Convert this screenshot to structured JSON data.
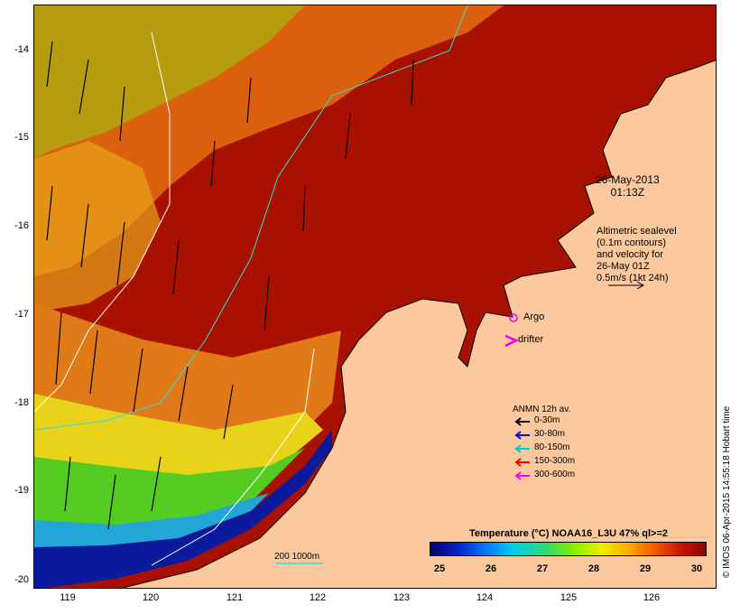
{
  "map": {
    "date_line1": "26-May-2013",
    "date_line2": "01:13Z",
    "altimetry_lines": [
      "Altimetric sealevel",
      "(0.1m contours)",
      "and velocity for",
      "26-May 01Z",
      "0.5m/s (1kt 24h)"
    ],
    "argo_label": "Argo",
    "drifter_label": "drifter",
    "scale_label": "200 1000m",
    "credit": "© IMOS 06-Apr-2015 14:55:18 Hobart time"
  },
  "axes": {
    "y_ticks": [
      "-14",
      "-15",
      "-16",
      "-17",
      "-18",
      "-19",
      "-20"
    ],
    "x_ticks": [
      "119",
      "120",
      "121",
      "122",
      "123",
      "124",
      "125",
      "126"
    ]
  },
  "legend": {
    "title": "ANMN 12h av.",
    "items": [
      {
        "label": "0-30m",
        "color": "#000000"
      },
      {
        "label": "30-80m",
        "color": "#0000ff"
      },
      {
        "label": "80-150m",
        "color": "#00cccc"
      },
      {
        "label": "150-300m",
        "color": "#ff0000"
      },
      {
        "label": "300-600m",
        "color": "#ff00ff"
      }
    ]
  },
  "colorbar": {
    "title": "Temperature (°C) NOAA16_L3U 47% ql>=2",
    "ticks": [
      "25",
      "26",
      "27",
      "28",
      "29",
      "30"
    ]
  },
  "colors": {
    "land": "#fcc99e",
    "hot": "#b01400",
    "cold": "#0b1a9c"
  }
}
